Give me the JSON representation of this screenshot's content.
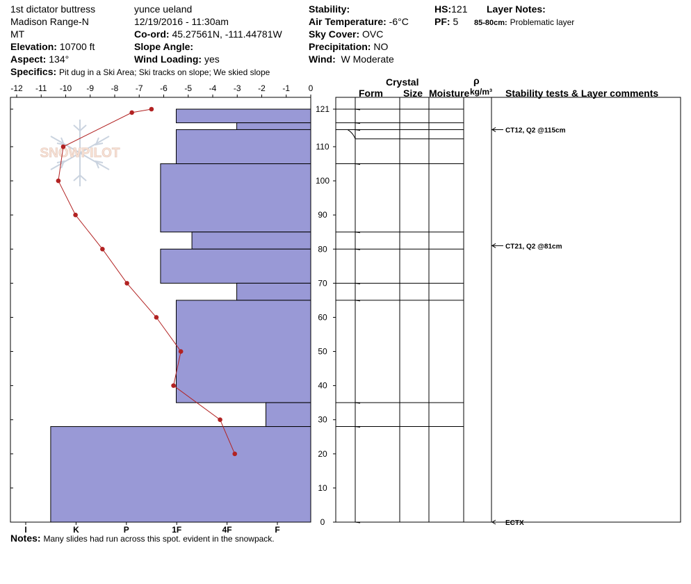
{
  "header": {
    "location": "1st dictator buttress",
    "range": "Madison Range-N",
    "state": "MT",
    "elevation_label": "Elevation:",
    "elevation": "10700 ft",
    "aspect_label": "Aspect:",
    "aspect": "134°",
    "observer": "yunce ueland",
    "datetime": "12/19/2016 - 11:30am",
    "coord_label": "Co-ord:",
    "coord": "45.27561N, -111.44781W",
    "slope_label": "Slope Angle:",
    "slope": "",
    "wind_loading_label": "Wind Loading:",
    "wind_loading": "yes",
    "stability_label": "Stability:",
    "stability": "",
    "air_temp_label": "Air Temperature:",
    "air_temp": "-6°C",
    "sky_label": "Sky Cover:",
    "sky": "OVC",
    "precip_label": "Precipitation:",
    "precip": "NO",
    "wind_label": "Wind:",
    "wind": "W Moderate",
    "hs_label": "HS:",
    "hs": "121",
    "pf_label": "PF:",
    "pf": "5",
    "layer_notes_label": "Layer Notes:",
    "layer_note_range": "85-80cm:",
    "layer_note_text": "Problematic layer",
    "specifics_label": "Specifics:",
    "specifics": "Pit dug in a Ski Area; Ski tracks on slope; We skied slope"
  },
  "notes": {
    "label": "Notes:",
    "text": "Many slides had run across this spot.  evident in the snowpack."
  },
  "watermark": "SNOWPILOT",
  "columns": {
    "crystal": "Crystal",
    "form": "Form",
    "size": "Size",
    "moisture": "Moisture",
    "rho": "ρ",
    "density_unit": "kg/m³",
    "stability_comments": "Stability tests & Layer comments"
  },
  "colors": {
    "hardness_fill": "#9999d6",
    "temp_line": "#b22222",
    "axis": "#000000"
  },
  "chart_data": {
    "type": "snow-profile",
    "temperature_axis": {
      "ticks": [
        "-12",
        "-11",
        "-10",
        "-9",
        "-8",
        "-7",
        "-6",
        "-5",
        "-4",
        "-3",
        "-2",
        "-1",
        "0"
      ],
      "range": [
        -12,
        0
      ]
    },
    "hardness_axis": {
      "ticks": [
        "I",
        "K",
        "P",
        "1F",
        "4F",
        "F"
      ],
      "range_index": [
        0,
        5.5
      ]
    },
    "height_axis": {
      "ticks": [
        "0",
        "10",
        "20",
        "30",
        "40",
        "50",
        "60",
        "70",
        "80",
        "90",
        "100",
        "110",
        "121"
      ],
      "range": [
        0,
        121
      ]
    },
    "hardness_layers": [
      {
        "top": 121,
        "bottom": 117,
        "hardness": 3.0
      },
      {
        "top": 117,
        "bottom": 115,
        "hardness": 1.65
      },
      {
        "top": 115,
        "bottom": 105,
        "hardness": 3.0
      },
      {
        "top": 105,
        "bottom": 85,
        "hardness": 3.35
      },
      {
        "top": 85,
        "bottom": 80,
        "hardness": 2.65
      },
      {
        "top": 80,
        "bottom": 70,
        "hardness": 3.35
      },
      {
        "top": 70,
        "bottom": 65,
        "hardness": 1.65
      },
      {
        "top": 65,
        "bottom": 35,
        "hardness": 3.0
      },
      {
        "top": 35,
        "bottom": 28,
        "hardness": 1.0
      },
      {
        "top": 28,
        "bottom": 0,
        "hardness": 5.8
      }
    ],
    "temperature_profile": [
      {
        "depth": 121,
        "temp": -6.5
      },
      {
        "depth": 120,
        "temp": -7.3
      },
      {
        "depth": 110,
        "temp": -10.1
      },
      {
        "depth": 100,
        "temp": -10.3
      },
      {
        "depth": 90,
        "temp": -9.6
      },
      {
        "depth": 80,
        "temp": -8.5
      },
      {
        "depth": 70,
        "temp": -7.5
      },
      {
        "depth": 60,
        "temp": -6.3
      },
      {
        "depth": 50,
        "temp": -5.3
      },
      {
        "depth": 40,
        "temp": -5.6
      },
      {
        "depth": 30,
        "temp": -3.7
      },
      {
        "depth": 20,
        "temp": -3.1
      }
    ],
    "layer_boundaries": [
      121,
      117,
      115,
      105,
      85,
      80,
      70,
      65,
      35,
      28,
      0
    ],
    "stability_tests": [
      {
        "label": "CT12, Q2 @115cm",
        "depth": 115
      },
      {
        "label": "CT21, Q2 @81cm",
        "depth": 81
      },
      {
        "label": "ECTX",
        "depth": 0
      }
    ]
  }
}
